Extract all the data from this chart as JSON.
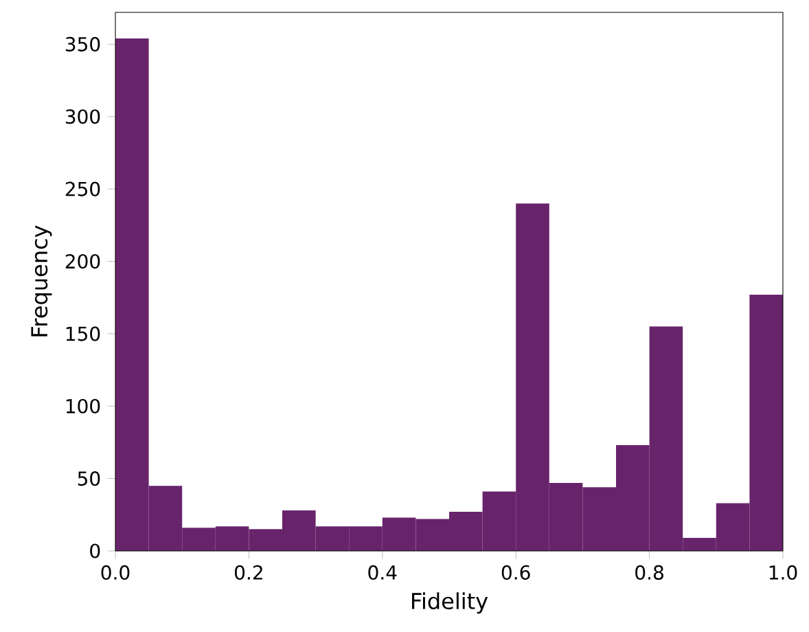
{
  "chart_data": {
    "type": "histogram",
    "xlabel": "Fidelity",
    "ylabel": "Frequency",
    "color": "#68246b",
    "bins": [
      0.0,
      0.05,
      0.1,
      0.15,
      0.2,
      0.25,
      0.3,
      0.35,
      0.4,
      0.45,
      0.5,
      0.55,
      0.6,
      0.65,
      0.7,
      0.75,
      0.8,
      0.85,
      0.9,
      0.95,
      1.0
    ],
    "values": [
      354,
      45,
      16,
      17,
      15,
      28,
      17,
      17,
      23,
      22,
      27,
      41,
      240,
      47,
      44,
      73,
      155,
      9,
      33,
      177
    ],
    "xlim": [
      0,
      1
    ],
    "ylim": [
      0,
      372
    ],
    "xticks": [
      {
        "value": 0,
        "label": "0.0"
      },
      {
        "value": 0.2,
        "label": "0.2"
      },
      {
        "value": 0.4,
        "label": "0.4"
      },
      {
        "value": 0.6,
        "label": "0.6"
      },
      {
        "value": 0.8,
        "label": "0.8"
      },
      {
        "value": 1,
        "label": "1.0"
      }
    ],
    "yticks": [
      0,
      50,
      100,
      150,
      200,
      250,
      300,
      350
    ]
  }
}
